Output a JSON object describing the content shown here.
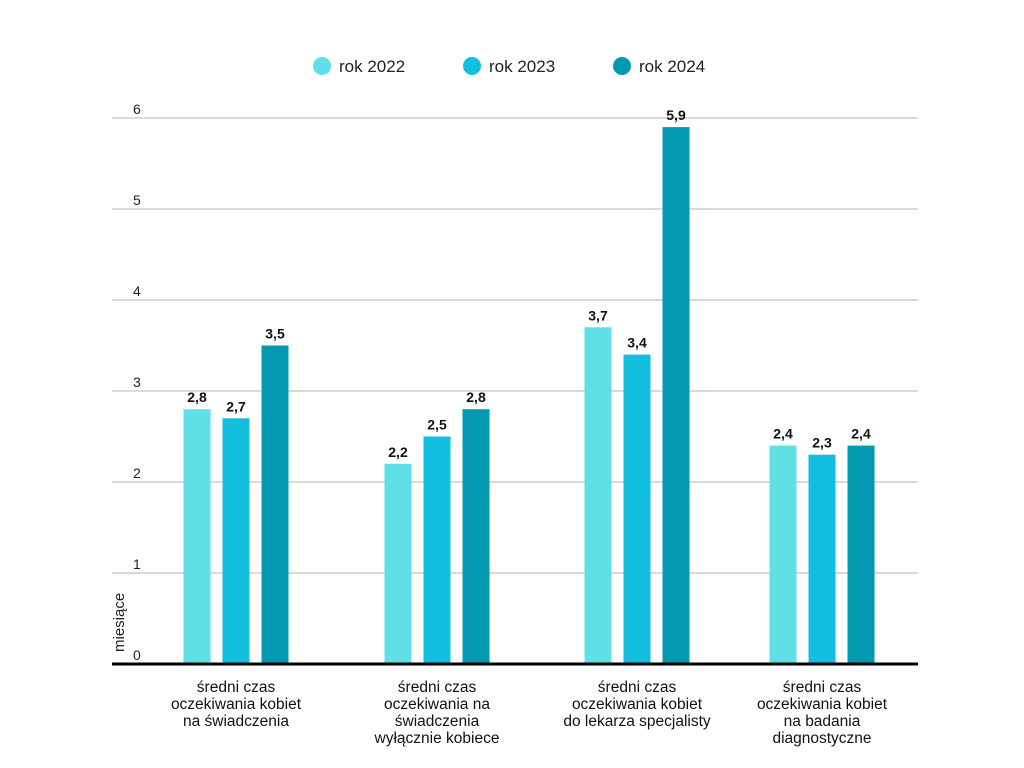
{
  "chart_data": {
    "type": "bar",
    "title": "",
    "xlabel": "",
    "ylabel": "miesiące",
    "ylim": [
      0,
      6
    ],
    "yticks": [
      0,
      1,
      2,
      3,
      4,
      5,
      6
    ],
    "grid": true,
    "legend_position": "top-center",
    "categories": [
      "średni czas oczekiwania kobiet na świadczenia",
      "średni czas oczekiwania na świadczenia wyłącznie kobiece",
      "średni czas oczekiwania kobiet do lekarza specjalisty",
      "średni czas oczekiwania kobiet na badania diagnostyczne"
    ],
    "category_lines": [
      [
        "średni czas",
        "oczekiwania kobiet",
        "na świadczenia"
      ],
      [
        "średni czas",
        "oczekiwania na",
        "świadczenia",
        "wyłącznie kobiece"
      ],
      [
        "średni czas",
        "oczekiwania kobiet",
        "do lekarza specjalisty"
      ],
      [
        "średni czas",
        "oczekiwania kobiet",
        "na badania",
        "diagnostyczne"
      ]
    ],
    "series": [
      {
        "name": "rok 2022",
        "color": "#5ee0e6",
        "values": [
          2.8,
          2.2,
          3.7,
          2.4
        ],
        "labels": [
          "2,8",
          "2,2",
          "3,7",
          "2,4"
        ]
      },
      {
        "name": "rok 2023",
        "color": "#12bfdf",
        "values": [
          2.7,
          2.5,
          3.4,
          2.3
        ],
        "labels": [
          "2,7",
          "2,5",
          "3,4",
          "2,3"
        ]
      },
      {
        "name": "rok 2024",
        "color": "#0399b0",
        "values": [
          3.5,
          2.8,
          5.9,
          2.4
        ],
        "labels": [
          "3,5",
          "2,8",
          "5,9",
          "2,4"
        ]
      }
    ]
  }
}
